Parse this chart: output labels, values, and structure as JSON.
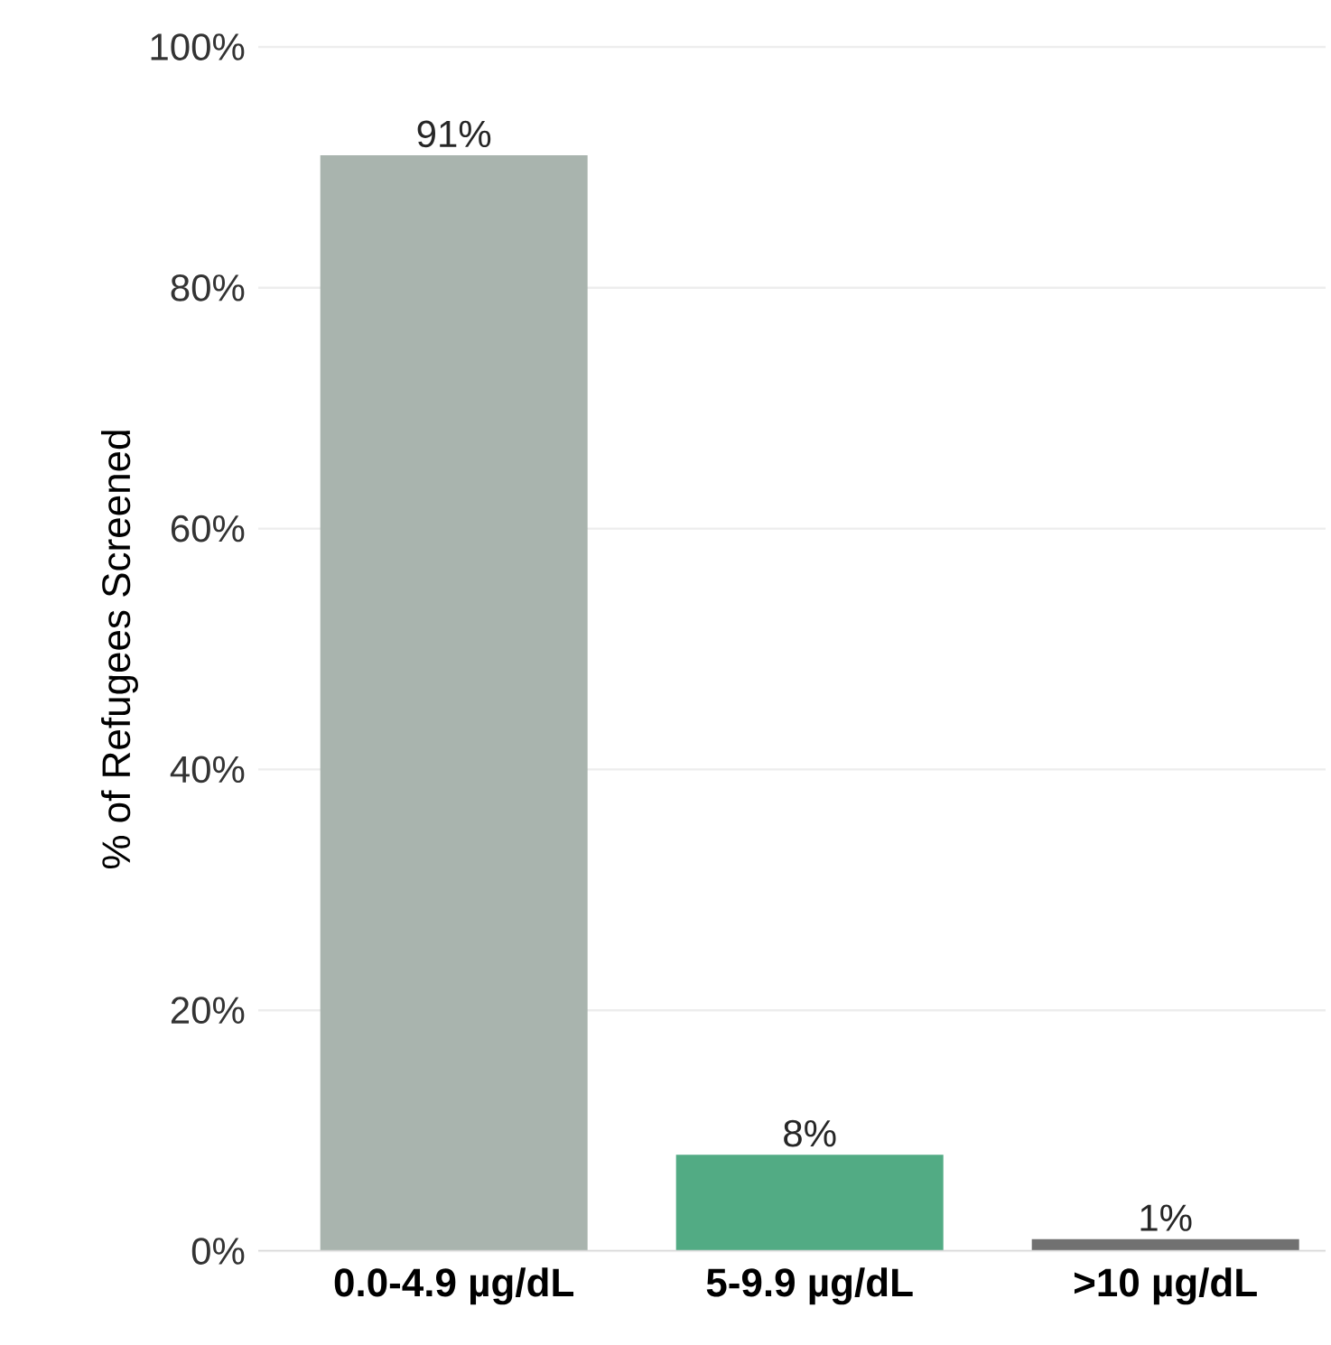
{
  "chart_data": {
    "type": "bar",
    "ylabel": "% of Refugees Screened",
    "categories": [
      "0.0-4.9 µg/dL",
      "5-9.9 µg/dL",
      ">10 µg/dL"
    ],
    "values": [
      91,
      8,
      1
    ],
    "colors": [
      "#a9b4ae",
      "#52ab84",
      "#717171"
    ],
    "value_labels": [
      "91%",
      "8%",
      "1%"
    ],
    "ylim": [
      0,
      100
    ],
    "yticks": [
      {
        "value": 0,
        "label": "0%"
      },
      {
        "value": 20,
        "label": "20%"
      },
      {
        "value": 40,
        "label": "40%"
      },
      {
        "value": 60,
        "label": "60%"
      },
      {
        "value": 80,
        "label": "80%"
      },
      {
        "value": 100,
        "label": "100%"
      }
    ],
    "grid": "y"
  }
}
